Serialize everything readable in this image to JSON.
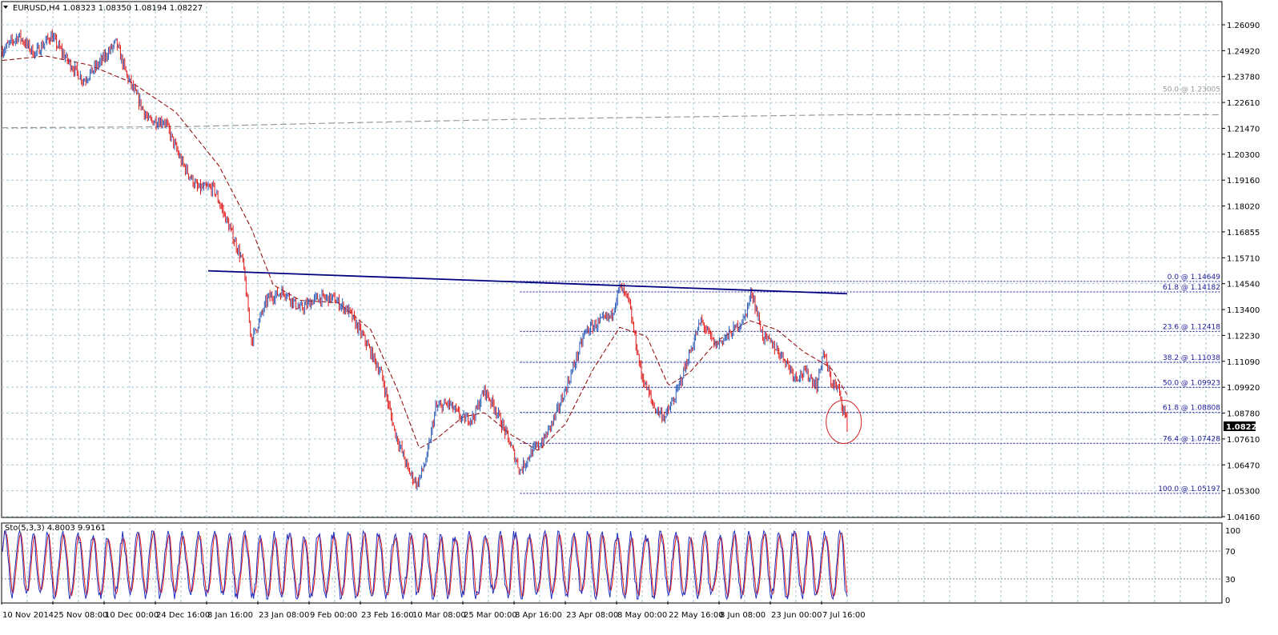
{
  "header": {
    "symbol_line": "EURUSD,H4  1.08323 1.08350 1.08194 1.08227",
    "indicator_line": "Sto(5,3,3) 4.8003 9.9161"
  },
  "colors": {
    "up_candle": "#2a5ab5",
    "down_candle": "#e01818",
    "ma": "#8b0000",
    "trendline": "#000080",
    "fib": "#1a1a99",
    "grid": "#a9c6d6",
    "stoch_main": "#2030c0",
    "stoch_signal": "#e01818",
    "circle": "#d82020"
  },
  "price_tag": "1.08227",
  "chart_data": {
    "type": "line",
    "title": "EURUSD,H4",
    "price_axis_ticks": [
      "1.26090",
      "1.24920",
      "1.23780",
      "1.22610",
      "1.21470",
      "1.20300",
      "1.19160",
      "1.18020",
      "1.16855",
      "1.15710",
      "1.14540",
      "1.13400",
      "1.12230",
      "1.11090",
      "1.09920",
      "1.08780",
      "1.07610",
      "1.06470",
      "1.05300",
      "1.04160"
    ],
    "ylim": [
      1.0416,
      1.2609
    ],
    "date_ticks": [
      "10 Nov 2014",
      "25 Nov 08:00",
      "10 Dec 00:00",
      "24 Dec 16:00",
      "8 Jan 16:00",
      "23 Jan 08:00",
      "9 Feb 00:00",
      "23 Feb 16:00",
      "10 Mar 08:00",
      "25 Mar 00:00",
      "8 Apr 16:00",
      "23 Apr 08:00",
      "8 May 00:00",
      "22 May 16:00",
      "8 Jun 08:00",
      "23 Jun 00:00",
      "7 Jul 16:00"
    ],
    "price_anchors": [
      [
        0,
        1.2495
      ],
      [
        15,
        1.256
      ],
      [
        30,
        1.248
      ],
      [
        45,
        1.256
      ],
      [
        60,
        1.245
      ],
      [
        75,
        1.236
      ],
      [
        90,
        1.244
      ],
      [
        105,
        1.253
      ],
      [
        115,
        1.238
      ],
      [
        125,
        1.228
      ],
      [
        135,
        1.218
      ],
      [
        150,
        1.218
      ],
      [
        165,
        1.2
      ],
      [
        180,
        1.188
      ],
      [
        195,
        1.188
      ],
      [
        210,
        1.17
      ],
      [
        222,
        1.155
      ],
      [
        230,
        1.12
      ],
      [
        245,
        1.139
      ],
      [
        260,
        1.142
      ],
      [
        275,
        1.134
      ],
      [
        290,
        1.139
      ],
      [
        305,
        1.139
      ],
      [
        320,
        1.133
      ],
      [
        335,
        1.12
      ],
      [
        350,
        1.105
      ],
      [
        362,
        1.08
      ],
      [
        375,
        1.062
      ],
      [
        383,
        1.056
      ],
      [
        392,
        1.068
      ],
      [
        400,
        1.09
      ],
      [
        412,
        1.092
      ],
      [
        425,
        1.085
      ],
      [
        435,
        1.086
      ],
      [
        445,
        1.098
      ],
      [
        455,
        1.09
      ],
      [
        468,
        1.075
      ],
      [
        478,
        1.062
      ],
      [
        488,
        1.07
      ],
      [
        500,
        1.076
      ],
      [
        512,
        1.088
      ],
      [
        525,
        1.105
      ],
      [
        538,
        1.124
      ],
      [
        550,
        1.128
      ],
      [
        562,
        1.131
      ],
      [
        570,
        1.144
      ],
      [
        578,
        1.138
      ],
      [
        590,
        1.105
      ],
      [
        602,
        1.09
      ],
      [
        612,
        1.086
      ],
      [
        622,
        1.096
      ],
      [
        635,
        1.115
      ],
      [
        645,
        1.129
      ],
      [
        658,
        1.118
      ],
      [
        672,
        1.123
      ],
      [
        685,
        1.13
      ],
      [
        692,
        1.142
      ],
      [
        702,
        1.122
      ],
      [
        712,
        1.118
      ],
      [
        722,
        1.112
      ],
      [
        732,
        1.104
      ],
      [
        742,
        1.106
      ],
      [
        752,
        1.1
      ],
      [
        758,
        1.115
      ],
      [
        765,
        1.102
      ],
      [
        772,
        1.098
      ],
      [
        780,
        1.083
      ]
    ],
    "ma_anchors": [
      [
        0,
        1.245
      ],
      [
        40,
        1.247
      ],
      [
        80,
        1.243
      ],
      [
        120,
        1.235
      ],
      [
        160,
        1.222
      ],
      [
        200,
        1.198
      ],
      [
        230,
        1.17
      ],
      [
        250,
        1.145
      ],
      [
        275,
        1.138
      ],
      [
        310,
        1.137
      ],
      [
        340,
        1.125
      ],
      [
        365,
        1.098
      ],
      [
        385,
        1.072
      ],
      [
        400,
        1.076
      ],
      [
        425,
        1.086
      ],
      [
        445,
        1.088
      ],
      [
        470,
        1.078
      ],
      [
        495,
        1.071
      ],
      [
        520,
        1.083
      ],
      [
        545,
        1.107
      ],
      [
        570,
        1.126
      ],
      [
        595,
        1.122
      ],
      [
        615,
        1.1
      ],
      [
        635,
        1.106
      ],
      [
        660,
        1.12
      ],
      [
        690,
        1.129
      ],
      [
        715,
        1.125
      ],
      [
        740,
        1.115
      ],
      [
        765,
        1.108
      ],
      [
        780,
        1.096
      ]
    ],
    "long_ma": [
      [
        0,
        1.215
      ],
      [
        170,
        1.2155
      ],
      [
        300,
        1.217
      ],
      [
        500,
        1.219
      ],
      [
        780,
        1.2208
      ]
    ],
    "trendline": [
      [
        190,
        1.1512
      ],
      [
        780,
        1.141
      ]
    ],
    "fibonacci": {
      "anchor_start": 478,
      "levels": [
        {
          "label": "0.0 @ 1.14649",
          "price": 1.14649
        },
        {
          "label": "61.8 @ 1.14182",
          "price": 1.14182
        },
        {
          "label": "23.6 @ 1.12418",
          "price": 1.12418
        },
        {
          "label": "38.2 @ 1.11038",
          "price": 1.11038
        },
        {
          "label": "50.0 @ 1.09923",
          "price": 1.09923
        },
        {
          "label": "61.8 @ 1.08808",
          "price": 1.08808
        },
        {
          "label": "76.4 @ 1.07428",
          "price": 1.07428
        },
        {
          "label": "100.0 @ 1.05197",
          "price": 1.05197
        }
      ],
      "upper": {
        "label": "50.0 @ 1.23005",
        "price": 1.23005
      }
    },
    "highlight_circle": {
      "center_index": 768,
      "price": 1.086
    },
    "stochastic": {
      "params": "Sto(5,3,3)",
      "main": 4.8003,
      "signal": 9.9161,
      "levels": [
        "100",
        "70",
        "30",
        "0"
      ],
      "ylim": [
        0,
        100
      ]
    }
  }
}
